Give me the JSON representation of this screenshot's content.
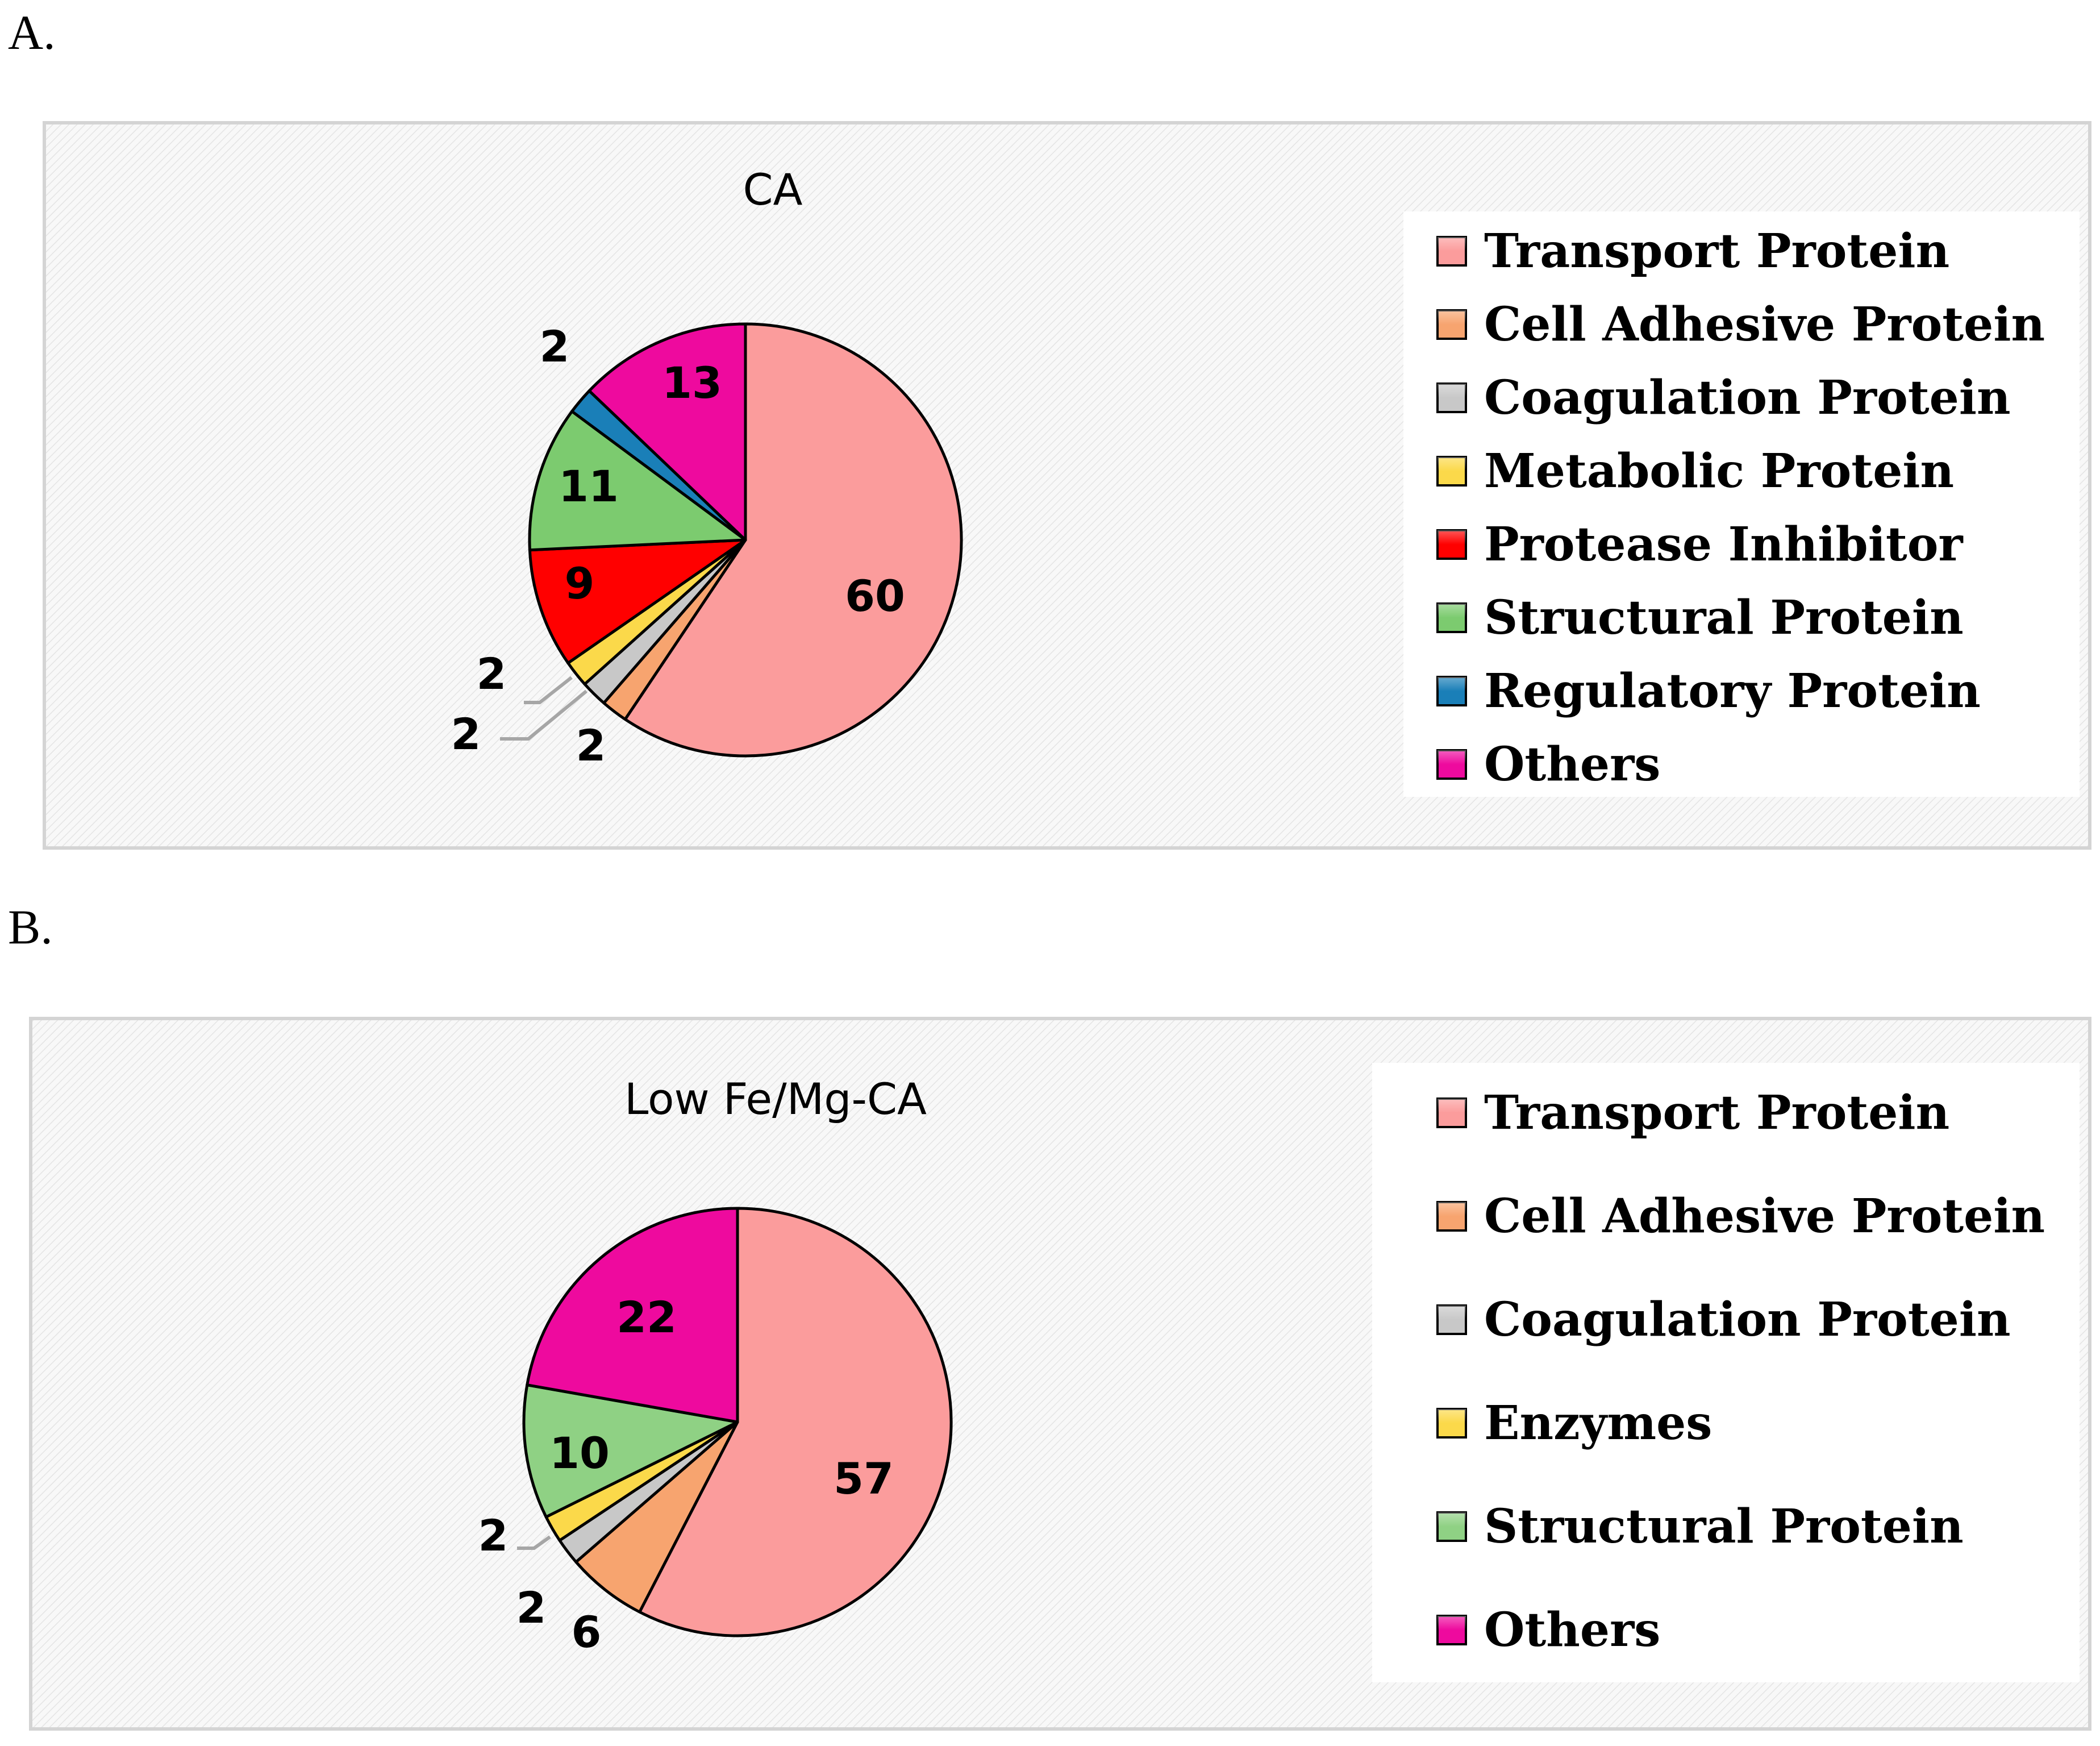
{
  "panels": [
    {
      "letter": "A."
    },
    {
      "letter": "B."
    }
  ],
  "chart_data": [
    {
      "type": "pie",
      "title": "CA",
      "legend_position": "right",
      "series": [
        {
          "values": [
            60,
            2,
            2,
            2,
            9,
            11,
            2,
            13
          ]
        }
      ],
      "categories": [
        "Transport Protein",
        "Cell Adhesive Protein",
        "Coagulation Protein",
        "Metabolic Protein",
        "Protease Inhibitor",
        "Structural Protein",
        "Regulatory Protein",
        "Others"
      ],
      "colors": [
        "#fb9c9c",
        "#f7a46f",
        "#c8c8c8",
        "#fbd94a",
        "#ff0000",
        "#7ccb6f",
        "#1a7fb8",
        "#ee0a9e"
      ],
      "data_labels": [
        "60",
        "2",
        "2",
        "2",
        "9",
        "11",
        "2",
        "13"
      ]
    },
    {
      "type": "pie",
      "title": "Low Fe/Mg-CA",
      "legend_position": "right",
      "series": [
        {
          "values": [
            57,
            6,
            2,
            2,
            10,
            22
          ]
        }
      ],
      "categories": [
        "Transport Protein",
        "Cell Adhesive Protein",
        "Coagulation Protein",
        "Enzymes",
        "Structural Protein",
        "Others"
      ],
      "colors": [
        "#fb9c9c",
        "#f7a46f",
        "#c8c8c8",
        "#fbd94a",
        "#8fd184",
        "#ee0a9e"
      ],
      "data_labels": [
        "57",
        "6",
        "2",
        "2",
        "10",
        "22"
      ]
    }
  ]
}
